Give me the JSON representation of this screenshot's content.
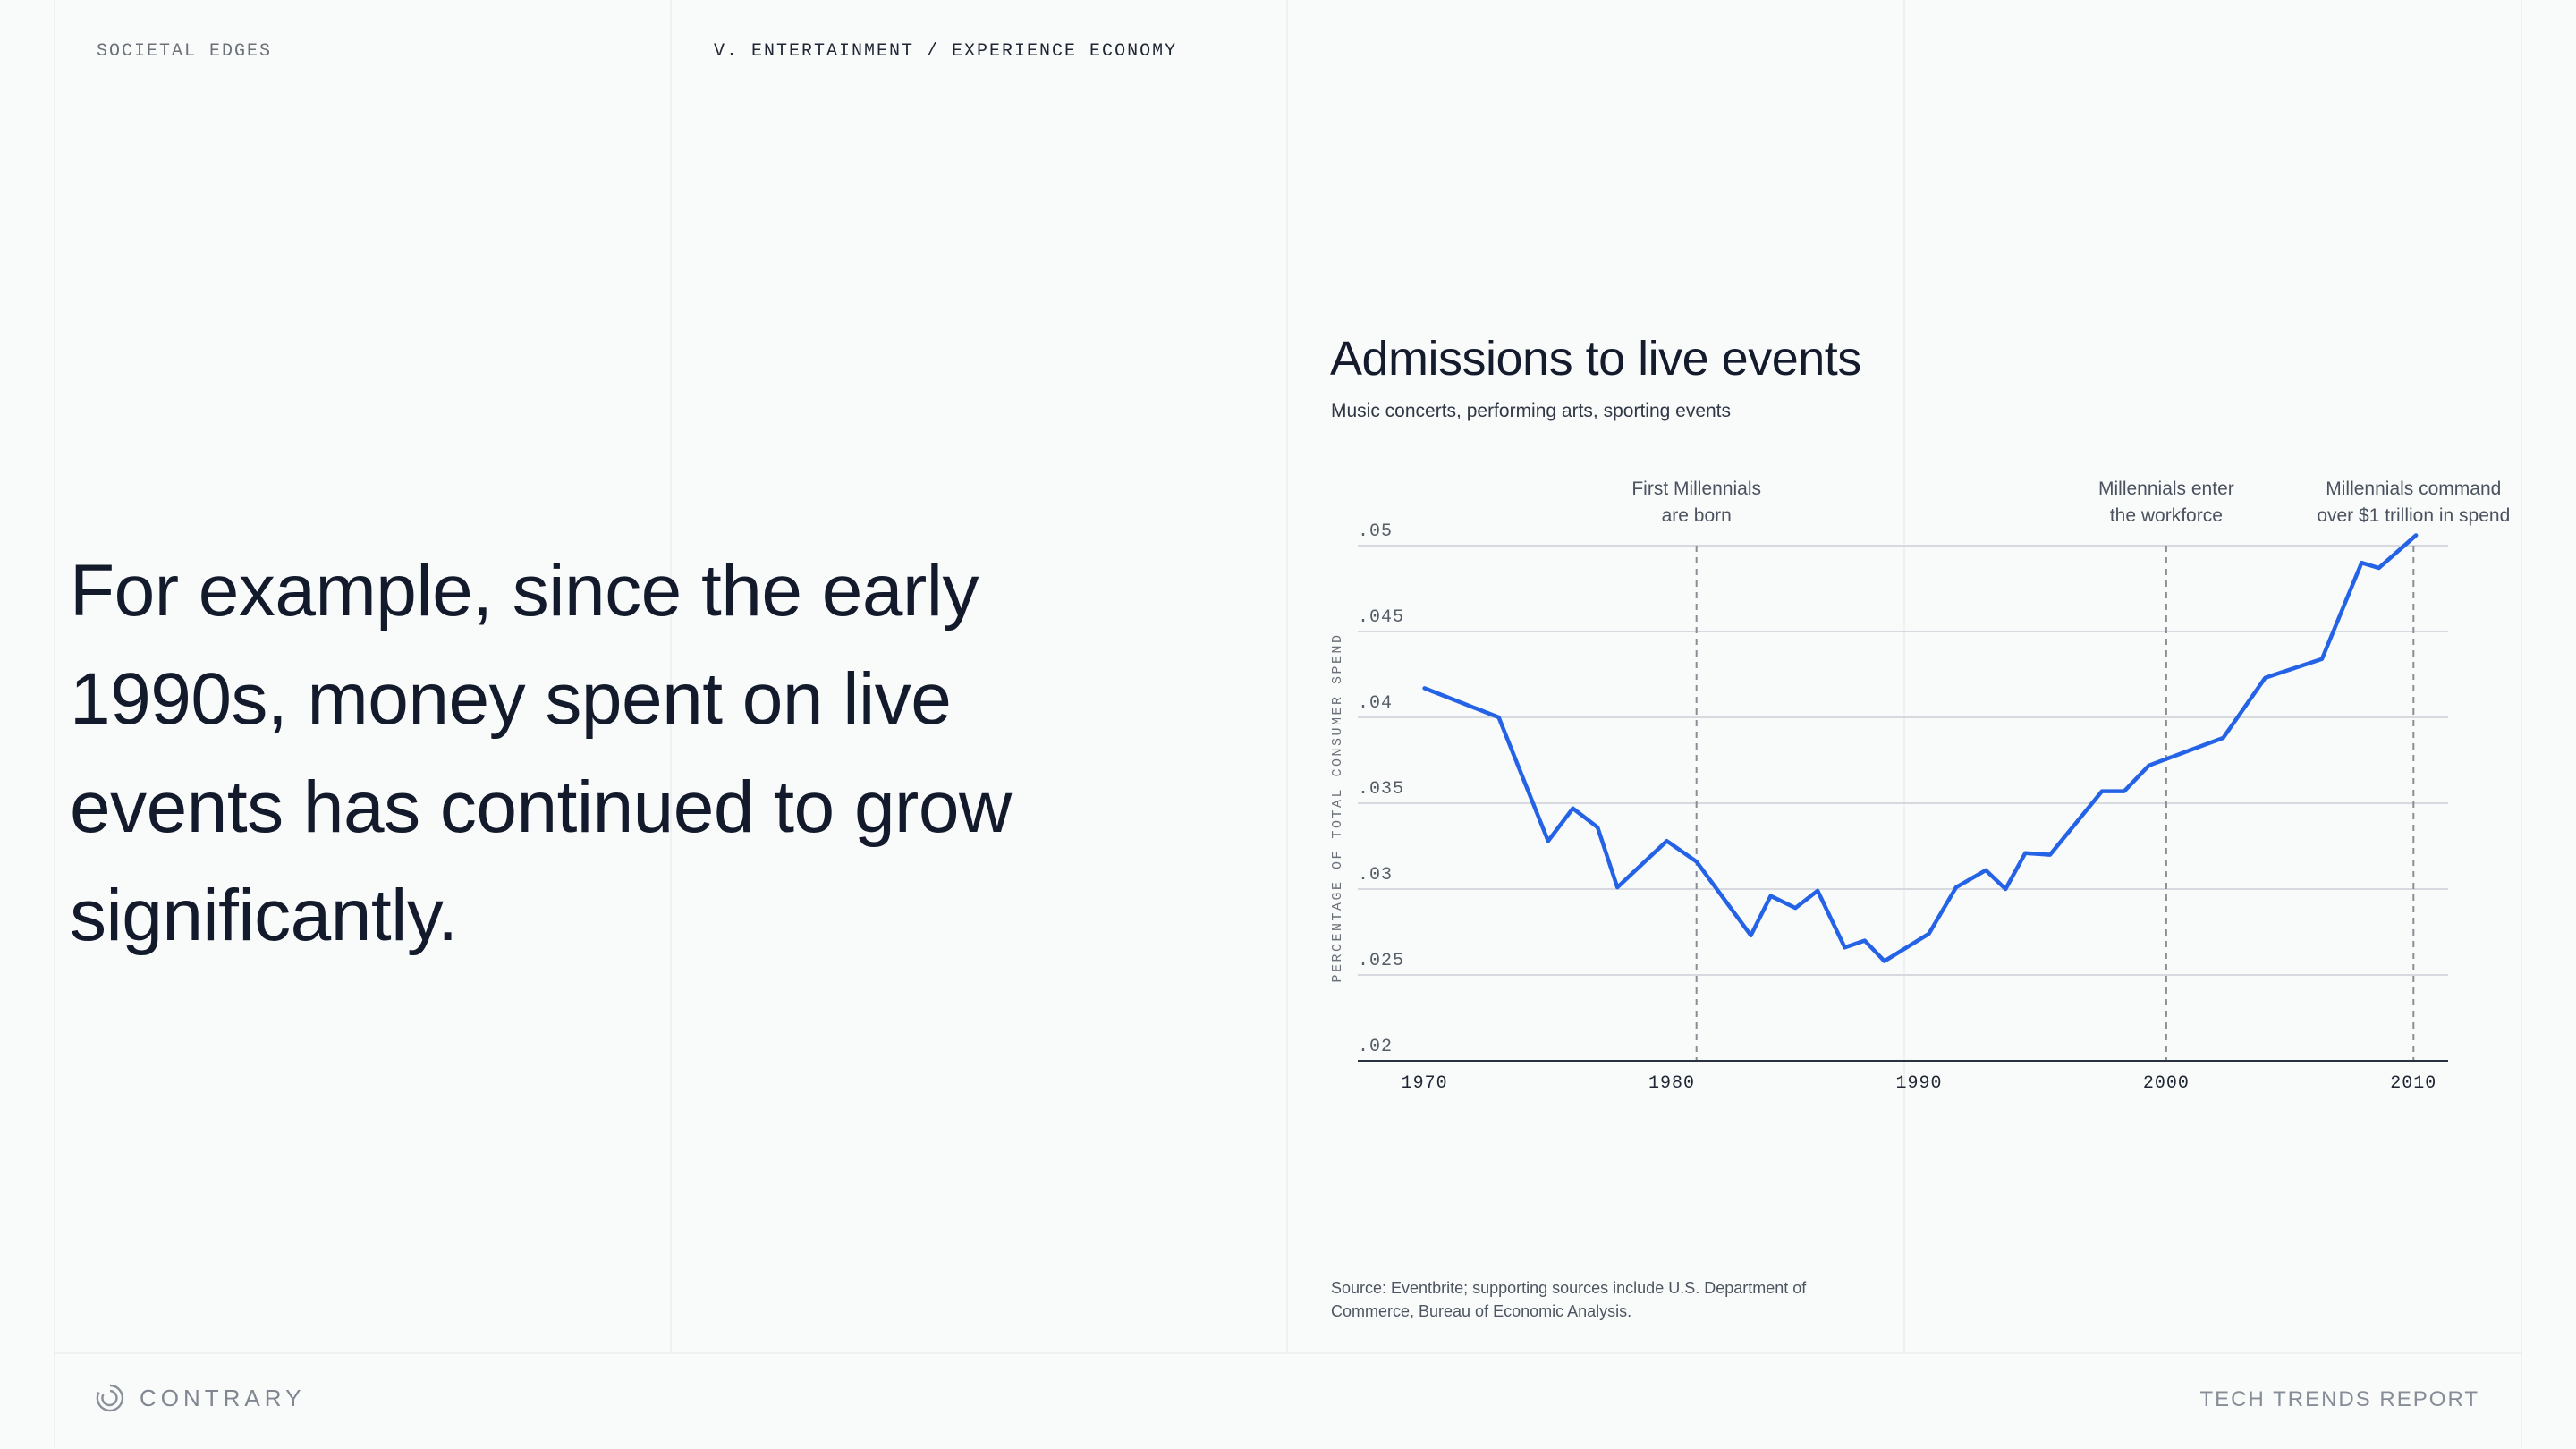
{
  "header": {
    "section": "SOCIETAL EDGES",
    "breadcrumb": "V. ENTERTAINMENT / EXPERIENCE ECONOMY"
  },
  "headline": "For example, since the early 1990s, money spent on live events has continued to grow significantly.",
  "chart_data": {
    "type": "line",
    "title": "Admissions to live events",
    "subtitle": "Music concerts, performing arts, sporting events",
    "xlabel": "",
    "ylabel": "PERCENTAGE OF TOTAL CONSUMER SPEND",
    "xlim": [
      1967.3,
      2011.4
    ],
    "ylim": [
      0.02,
      0.05
    ],
    "x_ticks": [
      1970,
      1980,
      1990,
      2000,
      2010
    ],
    "y_ticks": [
      0.02,
      0.025,
      0.03,
      0.035,
      0.04,
      0.045,
      0.05
    ],
    "y_tick_labels": [
      ".02",
      ".025",
      ".03",
      ".035",
      ".04",
      ".045",
      ".05"
    ],
    "grid": "horizontal",
    "series_color": "#2563e6",
    "series": [
      {
        "values": [
          [
            1970,
            0.0417
          ],
          [
            1973,
            0.04
          ],
          [
            1975,
            0.0328
          ],
          [
            1976,
            0.0347
          ],
          [
            1977,
            0.0336
          ],
          [
            1977.8,
            0.0301
          ],
          [
            1979.8,
            0.0328
          ],
          [
            1981,
            0.0316
          ],
          [
            1983.2,
            0.0273
          ],
          [
            1984,
            0.0296
          ],
          [
            1985,
            0.0289
          ],
          [
            1985.9,
            0.0299
          ],
          [
            1987,
            0.0266
          ],
          [
            1987.8,
            0.027
          ],
          [
            1988.6,
            0.0258
          ],
          [
            1990.4,
            0.0274
          ],
          [
            1991.5,
            0.0301
          ],
          [
            1992.7,
            0.0311
          ],
          [
            1993.5,
            0.03
          ],
          [
            1994.3,
            0.0321
          ],
          [
            1995.3,
            0.032
          ],
          [
            1997.4,
            0.0357
          ],
          [
            1998.3,
            0.0357
          ],
          [
            1999.3,
            0.0372
          ],
          [
            2002.3,
            0.0388
          ],
          [
            2004,
            0.0423
          ],
          [
            2006.3,
            0.0434
          ],
          [
            2007.9,
            0.049
          ],
          [
            2008.6,
            0.0487
          ],
          [
            2010.1,
            0.0506
          ]
        ]
      }
    ],
    "annotations": [
      {
        "x": 1981,
        "line1": "First Millennials",
        "line2": "are born"
      },
      {
        "x": 2000,
        "line1": "Millennials enter",
        "line2": "the workforce"
      },
      {
        "x": 2010,
        "line1": "Millennials command",
        "line2": "over $1 trillion in spend"
      }
    ]
  },
  "source": "Source: Eventbrite; supporting sources include U.S. Department of Commerce, Bureau of Economic Analysis.",
  "footer": {
    "brand": "CONTRARY",
    "brand_icon": "contrary-logo-icon",
    "report": "TECH TRENDS REPORT"
  }
}
